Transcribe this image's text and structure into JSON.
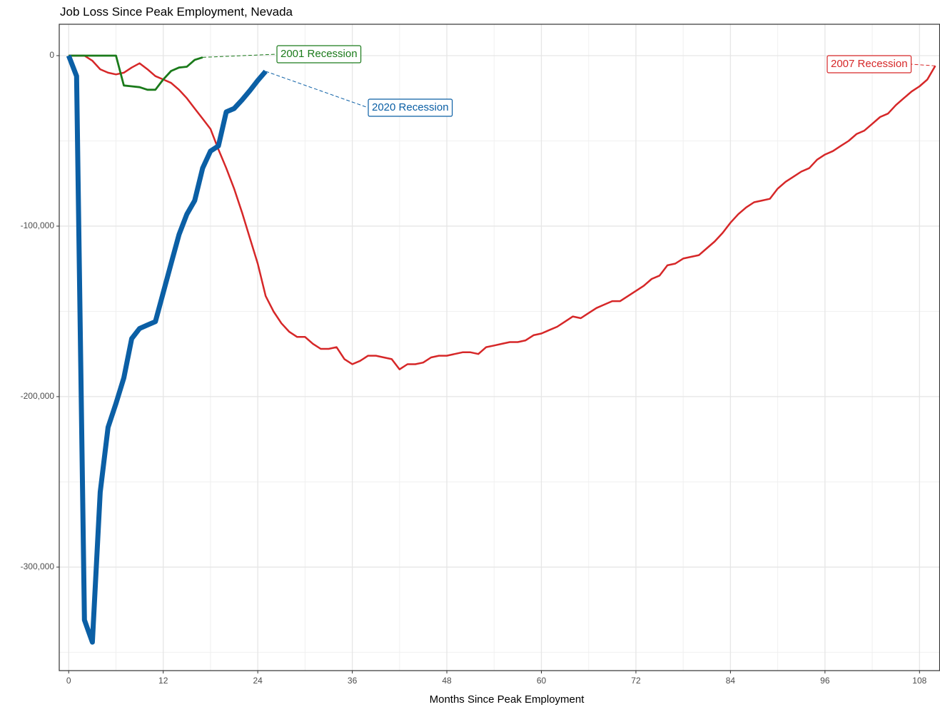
{
  "chart_data": {
    "type": "line",
    "title": "Job Loss Since Peak Employment, Nevada",
    "x_label": "Months Since Peak Employment",
    "xlim": [
      -1.2,
      110.6
    ],
    "xticks": [
      0,
      12,
      24,
      36,
      48,
      60,
      72,
      84,
      96,
      108
    ],
    "ylim": [
      -360700,
      18400
    ],
    "yticks": [
      {
        "value": -300000,
        "label": "-300,000"
      },
      {
        "value": -200000,
        "label": "-200,000"
      },
      {
        "value": -100000,
        "label": "-100,000"
      },
      0
    ],
    "grid": true,
    "series": [
      {
        "name": "2007 Recession",
        "color": "#d62728",
        "x": [
          0,
          1,
          2,
          3,
          4,
          5,
          6,
          7,
          8,
          9,
          10,
          11,
          12,
          13,
          14,
          15,
          16,
          17,
          18,
          19,
          20,
          21,
          22,
          23,
          24,
          25,
          26,
          27,
          28,
          29,
          30,
          31,
          32,
          33,
          34,
          35,
          36,
          37,
          38,
          39,
          40,
          41,
          42,
          43,
          44,
          45,
          46,
          47,
          48,
          49,
          50,
          51,
          52,
          53,
          54,
          55,
          56,
          57,
          58,
          59,
          60,
          61,
          62,
          63,
          64,
          65,
          66,
          67,
          68,
          69,
          70,
          71,
          72,
          73,
          74,
          75,
          76,
          77,
          78,
          79,
          80,
          81,
          82,
          83,
          84,
          85,
          86,
          87,
          88,
          89,
          90,
          91,
          92,
          93,
          94,
          95,
          96,
          97,
          98,
          99,
          100,
          101,
          102,
          103,
          104,
          105,
          106,
          107,
          108,
          109,
          110
        ],
        "values": [
          0,
          0,
          0,
          -3000,
          -8000,
          -10000,
          -11000,
          -10000,
          -7000,
          -4500,
          -8000,
          -12000,
          -14000,
          -16000,
          -20000,
          -25000,
          -31000,
          -37000,
          -43000,
          -55000,
          -66000,
          -78000,
          -92000,
          -107000,
          -122000,
          -141000,
          -150000,
          -157000,
          -162000,
          -165000,
          -165000,
          -169000,
          -172000,
          -172000,
          -171000,
          -178000,
          -181000,
          -179000,
          -176000,
          -176000,
          -177000,
          -178000,
          -184000,
          -181000,
          -181000,
          -180000,
          -177000,
          -176000,
          -176000,
          -175000,
          -174000,
          -174000,
          -175000,
          -171000,
          -170000,
          -169000,
          -168000,
          -168000,
          -167000,
          -164000,
          -163000,
          -161000,
          -159000,
          -156000,
          -153000,
          -154000,
          -151000,
          -148000,
          -146000,
          -144000,
          -144000,
          -141000,
          -138000,
          -135000,
          -131000,
          -129000,
          -123000,
          -122000,
          -119000,
          -118000,
          -117000,
          -113000,
          -109000,
          -104000,
          -98000,
          -93000,
          -89000,
          -86000,
          -85000,
          -84000,
          -78000,
          -74000,
          -71000,
          -68000,
          -66000,
          -61000,
          -58000,
          -56000,
          -53000,
          -50000,
          -46000,
          -44000,
          -40000,
          -36000,
          -34000,
          -29000,
          -25000,
          -21000,
          -18000,
          -14000,
          -6000
        ]
      },
      {
        "name": "2001 Recession",
        "color": "#1a7a1a",
        "x": [
          0,
          1,
          2,
          3,
          4,
          5,
          6,
          7,
          8,
          9,
          10,
          11,
          12,
          13,
          14,
          15,
          16,
          17
        ],
        "values": [
          0,
          0,
          0,
          0,
          0,
          0,
          0,
          -17500,
          -18000,
          -18500,
          -20000,
          -20000,
          -14000,
          -9000,
          -7000,
          -6500,
          -2500,
          -1000
        ]
      },
      {
        "name": "2020 Recession",
        "color": "#0b5fa5",
        "x": [
          0,
          1,
          2,
          3,
          4,
          5,
          6,
          7,
          8,
          9,
          10,
          11,
          12,
          13,
          14,
          15,
          16,
          17,
          18,
          19,
          20,
          21,
          22,
          23,
          24,
          25
        ],
        "values": [
          0,
          -12000,
          -331000,
          -344000,
          -256000,
          -218000,
          -204000,
          -189000,
          -166000,
          -160000,
          -158000,
          -156000,
          -139000,
          -122000,
          -105000,
          -93000,
          -85000,
          -66000,
          -56000,
          -53000,
          -33000,
          -31000,
          -26000,
          -20500,
          -14600,
          -9200
        ]
      }
    ]
  }
}
